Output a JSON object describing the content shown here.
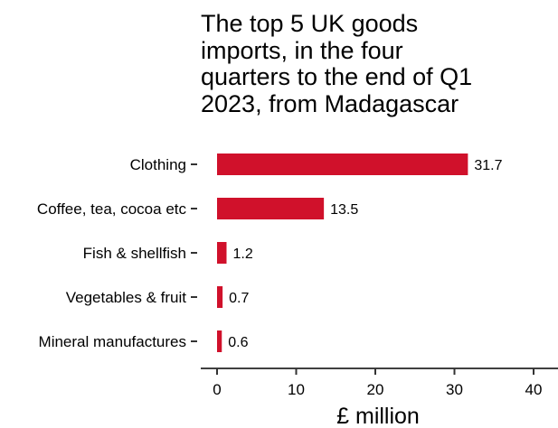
{
  "chart_data": {
    "type": "bar",
    "orientation": "horizontal",
    "title_lines": [
      "The top 5 UK goods",
      "imports, in the four",
      "quarters to the end of Q1",
      "2023, from Madagascar"
    ],
    "categories": [
      "Clothing",
      "Coffee, tea, cocoa etc",
      "Fish & shellfish",
      "Vegetables & fruit",
      "Mineral manufactures"
    ],
    "values": [
      31.7,
      13.5,
      1.2,
      0.7,
      0.6
    ],
    "data_labels": [
      "31.7",
      "13.5",
      "1.2",
      "0.7",
      "0.6"
    ],
    "xlabel": "£ million",
    "xlim": [
      0,
      40
    ],
    "xticks": [
      0,
      10,
      20,
      30,
      40
    ],
    "xtick_labels": [
      "0",
      "10",
      "20",
      "30",
      "40"
    ],
    "bar_color": "#d0112b",
    "grid": false
  }
}
